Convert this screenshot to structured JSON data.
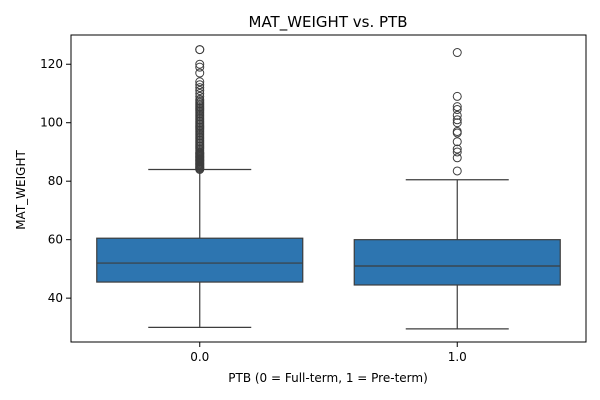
{
  "chart_data": {
    "type": "box",
    "title": "MAT_WEIGHT vs. PTB",
    "xlabel": "PTB (0 = Full-term, 1 = Pre-term)",
    "ylabel": "MAT_WEIGHT",
    "categories": [
      "0.0",
      "1.0"
    ],
    "ylim": [
      25,
      130
    ],
    "yticks": [
      40,
      60,
      80,
      100,
      120
    ],
    "box_color": "#2d75b0",
    "line_color": "#3d3d3d",
    "boxes": [
      {
        "category": "0.0",
        "min": 30,
        "q1": 45.5,
        "median": 52,
        "q3": 60.5,
        "max": 84,
        "outliers": [
          84,
          84.3,
          84.6,
          84.9,
          85.2,
          85.5,
          85.8,
          86.1,
          86.4,
          86.7,
          87,
          87.3,
          87.6,
          87.9,
          88.2,
          88.5,
          88.8,
          89.1,
          89.4,
          89.7,
          90,
          90.5,
          91,
          91.5,
          92,
          92.5,
          93,
          93.5,
          94,
          94.5,
          95,
          95.5,
          96,
          96.5,
          97,
          97.5,
          98,
          98.5,
          99,
          99.5,
          100,
          100.5,
          101,
          101.5,
          102,
          102.5,
          103,
          103.5,
          104,
          104.5,
          105,
          105.5,
          106,
          106.5,
          107,
          107.5,
          108,
          109,
          110,
          111,
          112,
          113,
          114,
          117,
          119,
          120,
          125,
          125
        ]
      },
      {
        "category": "1.0",
        "min": 29.5,
        "q1": 44.5,
        "median": 51,
        "q3": 60,
        "max": 80.5,
        "outliers": [
          83.5,
          88,
          90,
          91,
          93.5,
          96.5,
          97,
          100,
          101,
          102.5,
          104.5,
          105.5,
          109,
          124
        ]
      }
    ]
  }
}
